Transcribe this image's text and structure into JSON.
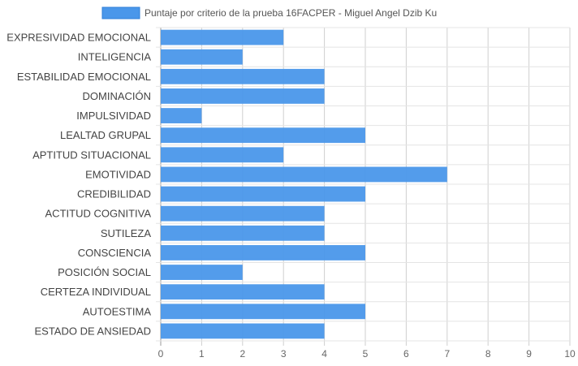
{
  "chart_data": {
    "type": "bar",
    "orientation": "horizontal",
    "categories": [
      "EXPRESIVIDAD EMOCIONAL",
      "INTELIGENCIA",
      "ESTABILIDAD EMOCIONAL",
      "DOMINACIÓN",
      "IMPULSIVIDAD",
      "LEALTAD GRUPAL",
      "APTITUD SITUACIONAL",
      "EMOTIVIDAD",
      "CREDIBILIDAD",
      "ACTITUD COGNITIVA",
      "SUTILEZA",
      "CONSCIENCIA",
      "POSICIÓN SOCIAL",
      "CERTEZA INDIVIDUAL",
      "AUTOESTIMA",
      "ESTADO DE ANSIEDAD"
    ],
    "series": [
      {
        "name": "Puntaje por criterio de la prueba 16FACPER - Miguel Angel Dzib Ku",
        "values": [
          3,
          2,
          4,
          4,
          1,
          5,
          3,
          7,
          5,
          4,
          4,
          5,
          2,
          4,
          5,
          4
        ],
        "color": "#4a97ea"
      }
    ],
    "xlim": [
      0,
      10
    ],
    "xticks": [
      "0",
      "1",
      "2",
      "3",
      "4",
      "5",
      "6",
      "7",
      "8",
      "9",
      "10"
    ],
    "grid": true,
    "legend_position": "top-center"
  }
}
